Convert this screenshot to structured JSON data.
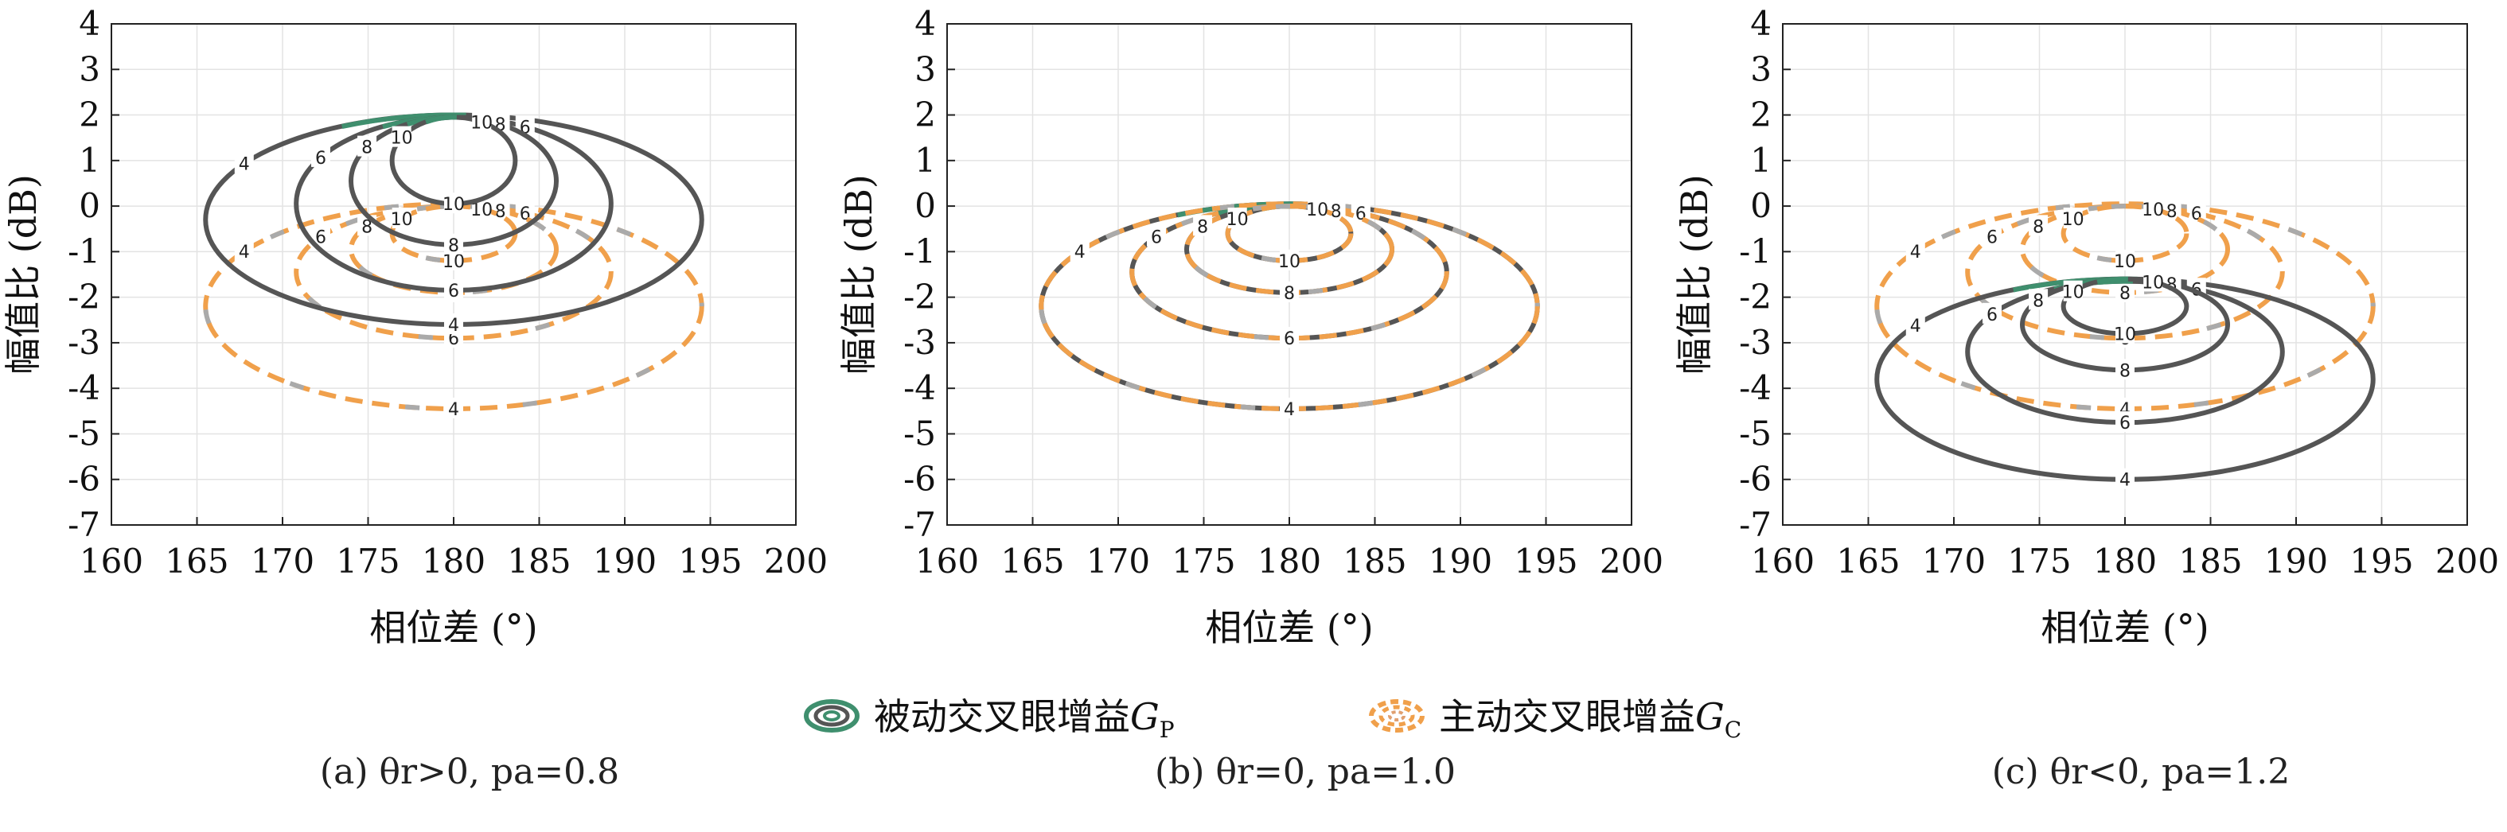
{
  "chart_data": [
    {
      "type": "contour",
      "caption": "(a) θr>0, pa=0.8",
      "xlabel": "相位差 (°)",
      "ylabel": "幅值比 (dB)",
      "xlim": [
        160,
        200
      ],
      "ylim": [
        -7,
        4
      ],
      "xticks": [
        160,
        165,
        170,
        175,
        180,
        185,
        190,
        195,
        200
      ],
      "yticks": [
        4,
        3,
        2,
        1,
        0,
        -1,
        -2,
        -3,
        -4,
        -5,
        -6,
        -7
      ],
      "grid": true,
      "series": [
        {
          "name": "被动交叉眼增益GP",
          "style": "solid",
          "contours": [
            {
              "level": 4,
              "center": [
                180,
                -0.3
              ],
              "half_width": 14.5,
              "half_height": 2.3
            },
            {
              "level": 6,
              "center": [
                180,
                0.05
              ],
              "half_width": 9.2,
              "half_height": 1.9
            },
            {
              "level": 8,
              "center": [
                180,
                0.55
              ],
              "half_width": 6.0,
              "half_height": 1.4
            },
            {
              "level": 10,
              "center": [
                180,
                1.0
              ],
              "half_width": 3.6,
              "half_height": 0.95
            }
          ]
        },
        {
          "name": "主动交叉眼增益GC",
          "style": "dashed",
          "contours": [
            {
              "level": 4,
              "center": [
                180,
                -2.2
              ],
              "half_width": 14.5,
              "half_height": 2.25
            },
            {
              "level": 6,
              "center": [
                180,
                -1.45
              ],
              "half_width": 9.2,
              "half_height": 1.45
            },
            {
              "level": 8,
              "center": [
                180,
                -0.95
              ],
              "half_width": 6.0,
              "half_height": 0.95
            },
            {
              "level": 10,
              "center": [
                180,
                -0.6
              ],
              "half_width": 3.6,
              "half_height": 0.6
            }
          ]
        }
      ]
    },
    {
      "type": "contour",
      "caption": "(b) θr=0, pa=1.0",
      "xlabel": "相位差 (°)",
      "ylabel": "幅值比 (dB)",
      "xlim": [
        160,
        200
      ],
      "ylim": [
        -7,
        4
      ],
      "xticks": [
        160,
        165,
        170,
        175,
        180,
        185,
        190,
        195,
        200
      ],
      "yticks": [
        4,
        3,
        2,
        1,
        0,
        -1,
        -2,
        -3,
        -4,
        -5,
        -6,
        -7
      ],
      "grid": true,
      "series": [
        {
          "name": "被动交叉眼增益GP",
          "style": "solid",
          "contours": [
            {
              "level": 4,
              "center": [
                180,
                -2.2
              ],
              "half_width": 14.5,
              "half_height": 2.25
            },
            {
              "level": 6,
              "center": [
                180,
                -1.45
              ],
              "half_width": 9.2,
              "half_height": 1.45
            },
            {
              "level": 8,
              "center": [
                180,
                -0.95
              ],
              "half_width": 6.0,
              "half_height": 0.95
            },
            {
              "level": 10,
              "center": [
                180,
                -0.6
              ],
              "half_width": 3.6,
              "half_height": 0.6
            }
          ]
        },
        {
          "name": "主动交叉眼增益GC",
          "style": "dashed",
          "contours": [
            {
              "level": 4,
              "center": [
                180,
                -2.2
              ],
              "half_width": 14.5,
              "half_height": 2.25
            },
            {
              "level": 6,
              "center": [
                180,
                -1.45
              ],
              "half_width": 9.2,
              "half_height": 1.45
            },
            {
              "level": 8,
              "center": [
                180,
                -0.95
              ],
              "half_width": 6.0,
              "half_height": 0.95
            },
            {
              "level": 10,
              "center": [
                180,
                -0.6
              ],
              "half_width": 3.6,
              "half_height": 0.6
            }
          ]
        }
      ]
    },
    {
      "type": "contour",
      "caption": "(c) θr<0, pa=1.2",
      "xlabel": "相位差 (°)",
      "ylabel": "幅值比 (dB)",
      "xlim": [
        160,
        200
      ],
      "ylim": [
        -7,
        4
      ],
      "xticks": [
        160,
        165,
        170,
        175,
        180,
        185,
        190,
        195,
        200
      ],
      "yticks": [
        4,
        3,
        2,
        1,
        0,
        -1,
        -2,
        -3,
        -4,
        -5,
        -6,
        -7
      ],
      "grid": true,
      "series": [
        {
          "name": "被动交叉眼增益GP",
          "style": "solid",
          "contours": [
            {
              "level": 4,
              "center": [
                180,
                -3.8
              ],
              "half_width": 14.5,
              "half_height": 2.2
            },
            {
              "level": 6,
              "center": [
                180,
                -3.2
              ],
              "half_width": 9.2,
              "half_height": 1.55
            },
            {
              "level": 8,
              "center": [
                180,
                -2.6
              ],
              "half_width": 6.0,
              "half_height": 1.0
            },
            {
              "level": 10,
              "center": [
                180,
                -2.2
              ],
              "half_width": 3.6,
              "half_height": 0.6
            }
          ]
        },
        {
          "name": "主动交叉眼增益GC",
          "style": "dashed",
          "contours": [
            {
              "level": 4,
              "center": [
                180,
                -2.2
              ],
              "half_width": 14.5,
              "half_height": 2.25
            },
            {
              "level": 6,
              "center": [
                180,
                -1.45
              ],
              "half_width": 9.2,
              "half_height": 1.45
            },
            {
              "level": 8,
              "center": [
                180,
                -0.95
              ],
              "half_width": 6.0,
              "half_height": 0.95
            },
            {
              "level": 10,
              "center": [
                180,
                -0.6
              ],
              "half_width": 3.6,
              "half_height": 0.6
            }
          ]
        }
      ]
    }
  ],
  "legend": [
    {
      "label": "被动交叉眼增益GP",
      "base": "被动交叉眼增益",
      "symbol": "G",
      "sub": "P"
    },
    {
      "label": "主动交叉眼增益GC",
      "base": "主动交叉眼增益",
      "symbol": "G",
      "sub": "C"
    }
  ],
  "captions": [
    "(a) θr>0, pa=0.8",
    "(b) θr=0, pa=1.0",
    "(c) θr<0, pa=1.2"
  ],
  "colors": {
    "passive_line": "#555555",
    "passive_accent": "#3f8f6e",
    "active_line": "#f0a04b",
    "active_accent1": "#aaaaaa",
    "active_accent2": "#e08fb0",
    "grid": "#e3e3e3",
    "axis": "#222222"
  }
}
